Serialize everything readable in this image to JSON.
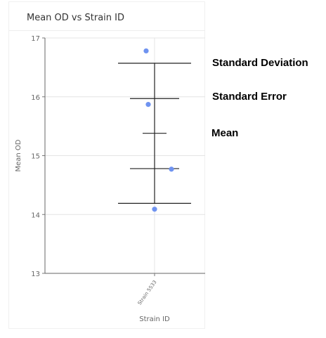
{
  "chart_data": {
    "type": "scatter",
    "title": "Mean OD vs Strain ID",
    "xlabel": "Strain ID",
    "ylabel": "Mean OD",
    "categories": [
      "Strain 5533"
    ],
    "ylim": [
      13,
      17
    ],
    "yticks": [
      13,
      14,
      15,
      16,
      17
    ],
    "grid": true,
    "points": [
      {
        "category": "Strain 5533",
        "offset": -0.4,
        "y": 16.78
      },
      {
        "category": "Strain 5533",
        "offset": -0.3,
        "y": 15.87
      },
      {
        "category": "Strain 5533",
        "offset": 0.8,
        "y": 14.77
      },
      {
        "category": "Strain 5533",
        "offset": 0.0,
        "y": 14.09
      }
    ],
    "summary": {
      "mean": 15.38,
      "sd_upper": 16.57,
      "sd_lower": 14.19,
      "se_upper": 15.97,
      "se_lower": 14.78
    },
    "point_color": "#6f93f0",
    "annotations": [
      {
        "id": "sd",
        "text": "Standard Deviation"
      },
      {
        "id": "se",
        "text": "Standard Error"
      },
      {
        "id": "mean",
        "text": "Mean"
      }
    ]
  }
}
